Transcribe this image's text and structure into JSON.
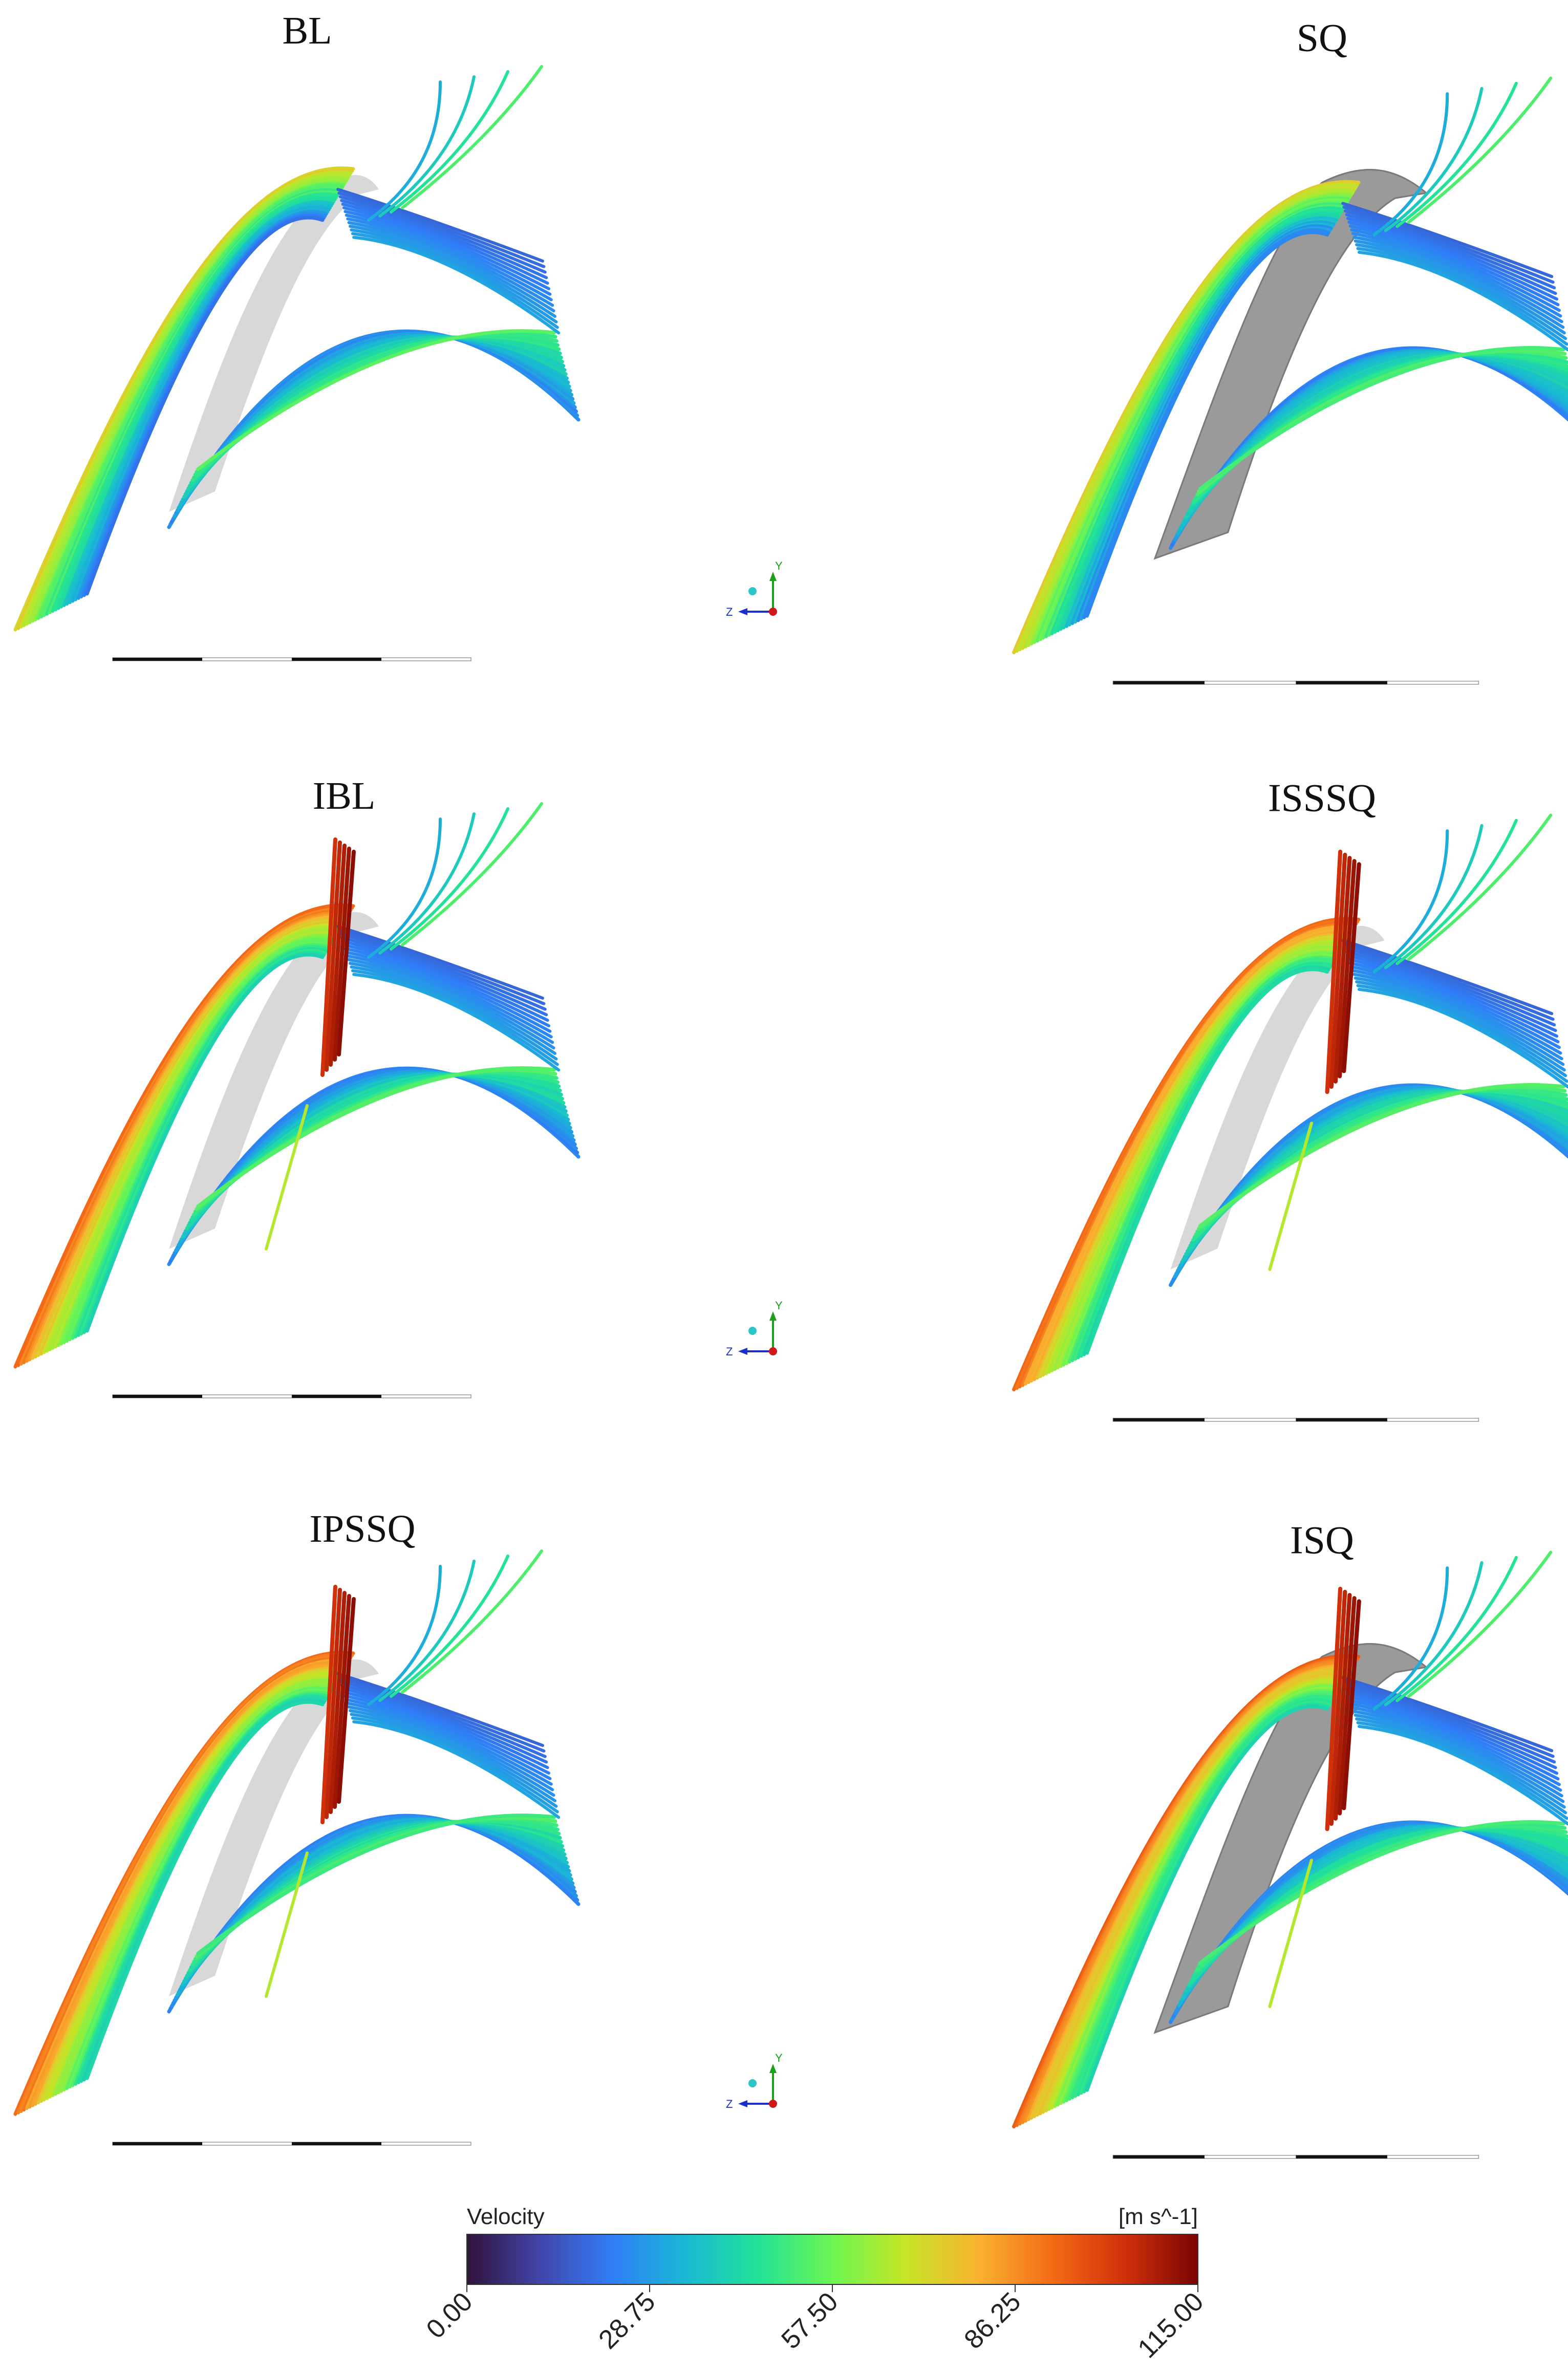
{
  "panels": [
    {
      "id": "BL",
      "title": "BL",
      "has_jet": false,
      "show_blade": false
    },
    {
      "id": "SQ",
      "title": "SQ",
      "has_jet": false,
      "show_blade": true
    },
    {
      "id": "IBL",
      "title": "IBL",
      "has_jet": true,
      "show_blade": false
    },
    {
      "id": "ISSSQ",
      "title": "ISSSQ",
      "has_jet": true,
      "show_blade": false
    },
    {
      "id": "IPSSQ",
      "title": "IPSSQ",
      "has_jet": true,
      "show_blade": false
    },
    {
      "id": "ISQ",
      "title": "ISQ",
      "has_jet": true,
      "show_blade": true
    }
  ],
  "axis_triad": {
    "y_label": "Y",
    "z_label": "Z"
  },
  "colorbar": {
    "title": "Velocity",
    "unit": "[m s^-1]",
    "ticks": [
      "0.00",
      "28.75",
      "57.50",
      "86.25",
      "115.00"
    ],
    "range": [
      0,
      115
    ],
    "colormap": [
      "#30123b",
      "#4145ab",
      "#2f7ef7",
      "#19b9d4",
      "#22e396",
      "#6cf552",
      "#c6e526",
      "#f9b230",
      "#f46b17",
      "#d0300a",
      "#7a0403"
    ]
  }
}
